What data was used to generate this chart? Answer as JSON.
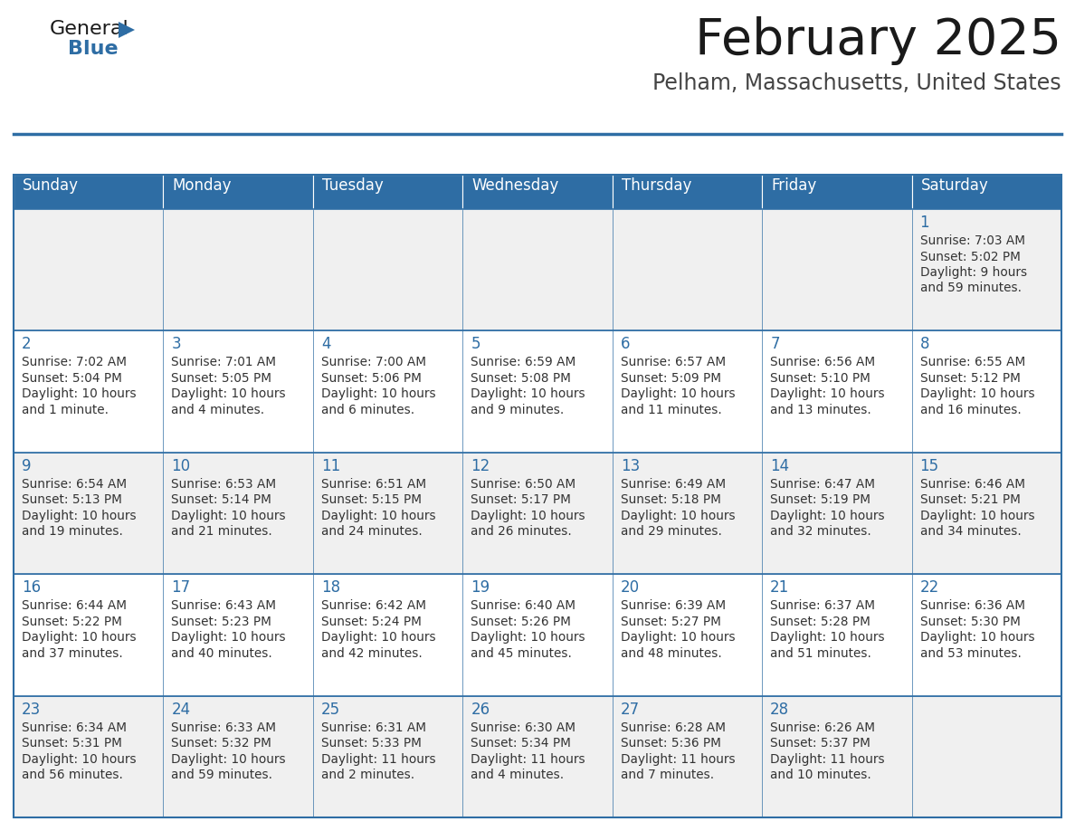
{
  "title": "February 2025",
  "subtitle": "Pelham, Massachusetts, United States",
  "header_bg": "#2E6DA4",
  "header_text_color": "#FFFFFF",
  "cell_bg_odd": "#F0F0F0",
  "cell_bg_even": "#FFFFFF",
  "day_number_color": "#2E6DA4",
  "info_text_color": "#333333",
  "border_color": "#2E6DA4",
  "days_of_week": [
    "Sunday",
    "Monday",
    "Tuesday",
    "Wednesday",
    "Thursday",
    "Friday",
    "Saturday"
  ],
  "calendar_data": [
    [
      null,
      null,
      null,
      null,
      null,
      null,
      {
        "day": "1",
        "sunrise": "7:03 AM",
        "sunset": "5:02 PM",
        "daylight1": "9 hours",
        "daylight2": "and 59 minutes."
      }
    ],
    [
      {
        "day": "2",
        "sunrise": "7:02 AM",
        "sunset": "5:04 PM",
        "daylight1": "10 hours",
        "daylight2": "and 1 minute."
      },
      {
        "day": "3",
        "sunrise": "7:01 AM",
        "sunset": "5:05 PM",
        "daylight1": "10 hours",
        "daylight2": "and 4 minutes."
      },
      {
        "day": "4",
        "sunrise": "7:00 AM",
        "sunset": "5:06 PM",
        "daylight1": "10 hours",
        "daylight2": "and 6 minutes."
      },
      {
        "day": "5",
        "sunrise": "6:59 AM",
        "sunset": "5:08 PM",
        "daylight1": "10 hours",
        "daylight2": "and 9 minutes."
      },
      {
        "day": "6",
        "sunrise": "6:57 AM",
        "sunset": "5:09 PM",
        "daylight1": "10 hours",
        "daylight2": "and 11 minutes."
      },
      {
        "day": "7",
        "sunrise": "6:56 AM",
        "sunset": "5:10 PM",
        "daylight1": "10 hours",
        "daylight2": "and 13 minutes."
      },
      {
        "day": "8",
        "sunrise": "6:55 AM",
        "sunset": "5:12 PM",
        "daylight1": "10 hours",
        "daylight2": "and 16 minutes."
      }
    ],
    [
      {
        "day": "9",
        "sunrise": "6:54 AM",
        "sunset": "5:13 PM",
        "daylight1": "10 hours",
        "daylight2": "and 19 minutes."
      },
      {
        "day": "10",
        "sunrise": "6:53 AM",
        "sunset": "5:14 PM",
        "daylight1": "10 hours",
        "daylight2": "and 21 minutes."
      },
      {
        "day": "11",
        "sunrise": "6:51 AM",
        "sunset": "5:15 PM",
        "daylight1": "10 hours",
        "daylight2": "and 24 minutes."
      },
      {
        "day": "12",
        "sunrise": "6:50 AM",
        "sunset": "5:17 PM",
        "daylight1": "10 hours",
        "daylight2": "and 26 minutes."
      },
      {
        "day": "13",
        "sunrise": "6:49 AM",
        "sunset": "5:18 PM",
        "daylight1": "10 hours",
        "daylight2": "and 29 minutes."
      },
      {
        "day": "14",
        "sunrise": "6:47 AM",
        "sunset": "5:19 PM",
        "daylight1": "10 hours",
        "daylight2": "and 32 minutes."
      },
      {
        "day": "15",
        "sunrise": "6:46 AM",
        "sunset": "5:21 PM",
        "daylight1": "10 hours",
        "daylight2": "and 34 minutes."
      }
    ],
    [
      {
        "day": "16",
        "sunrise": "6:44 AM",
        "sunset": "5:22 PM",
        "daylight1": "10 hours",
        "daylight2": "and 37 minutes."
      },
      {
        "day": "17",
        "sunrise": "6:43 AM",
        "sunset": "5:23 PM",
        "daylight1": "10 hours",
        "daylight2": "and 40 minutes."
      },
      {
        "day": "18",
        "sunrise": "6:42 AM",
        "sunset": "5:24 PM",
        "daylight1": "10 hours",
        "daylight2": "and 42 minutes."
      },
      {
        "day": "19",
        "sunrise": "6:40 AM",
        "sunset": "5:26 PM",
        "daylight1": "10 hours",
        "daylight2": "and 45 minutes."
      },
      {
        "day": "20",
        "sunrise": "6:39 AM",
        "sunset": "5:27 PM",
        "daylight1": "10 hours",
        "daylight2": "and 48 minutes."
      },
      {
        "day": "21",
        "sunrise": "6:37 AM",
        "sunset": "5:28 PM",
        "daylight1": "10 hours",
        "daylight2": "and 51 minutes."
      },
      {
        "day": "22",
        "sunrise": "6:36 AM",
        "sunset": "5:30 PM",
        "daylight1": "10 hours",
        "daylight2": "and 53 minutes."
      }
    ],
    [
      {
        "day": "23",
        "sunrise": "6:34 AM",
        "sunset": "5:31 PM",
        "daylight1": "10 hours",
        "daylight2": "and 56 minutes."
      },
      {
        "day": "24",
        "sunrise": "6:33 AM",
        "sunset": "5:32 PM",
        "daylight1": "10 hours",
        "daylight2": "and 59 minutes."
      },
      {
        "day": "25",
        "sunrise": "6:31 AM",
        "sunset": "5:33 PM",
        "daylight1": "11 hours",
        "daylight2": "and 2 minutes."
      },
      {
        "day": "26",
        "sunrise": "6:30 AM",
        "sunset": "5:34 PM",
        "daylight1": "11 hours",
        "daylight2": "and 4 minutes."
      },
      {
        "day": "27",
        "sunrise": "6:28 AM",
        "sunset": "5:36 PM",
        "daylight1": "11 hours",
        "daylight2": "and 7 minutes."
      },
      {
        "day": "28",
        "sunrise": "6:26 AM",
        "sunset": "5:37 PM",
        "daylight1": "11 hours",
        "daylight2": "and 10 minutes."
      },
      null
    ]
  ]
}
